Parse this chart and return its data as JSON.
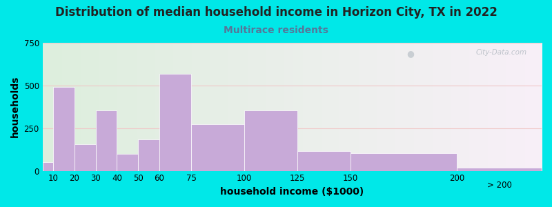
{
  "title": "Distribution of median household income in Horizon City, TX in 2022",
  "subtitle": "Multirace residents",
  "xlabel": "household income ($1000)",
  "ylabel": "households",
  "title_fontsize": 12,
  "subtitle_fontsize": 10,
  "title_color": "#222222",
  "subtitle_color": "#557799",
  "bar_color": "#c8aad8",
  "bar_edgecolor": "#c8aad8",
  "background_outer": "#00e8e8",
  "background_plot": "#e8f2e0",
  "ylim": [
    0,
    750
  ],
  "yticks": [
    0,
    250,
    500,
    750
  ],
  "xlim": [
    5,
    240
  ],
  "watermark": "City-Data.com",
  "categories": [
    "10",
    "20",
    "30",
    "40",
    "50",
    "60",
    "75",
    "100",
    "125",
    "150",
    "200",
    "> 200"
  ],
  "left_edges": [
    5,
    10,
    20,
    30,
    40,
    50,
    60,
    75,
    100,
    125,
    150,
    200
  ],
  "right_edges": [
    10,
    20,
    30,
    40,
    50,
    60,
    75,
    100,
    125,
    150,
    200,
    240
  ],
  "values": [
    50,
    490,
    155,
    355,
    100,
    185,
    570,
    275,
    355,
    115,
    105,
    20
  ],
  "tick_positions": [
    10,
    20,
    30,
    40,
    50,
    60,
    75,
    100,
    125,
    150,
    200
  ],
  "tick_labels": [
    "10",
    "20",
    "30",
    "40",
    "50",
    "60",
    "75",
    "100",
    "125",
    "150",
    "200"
  ]
}
